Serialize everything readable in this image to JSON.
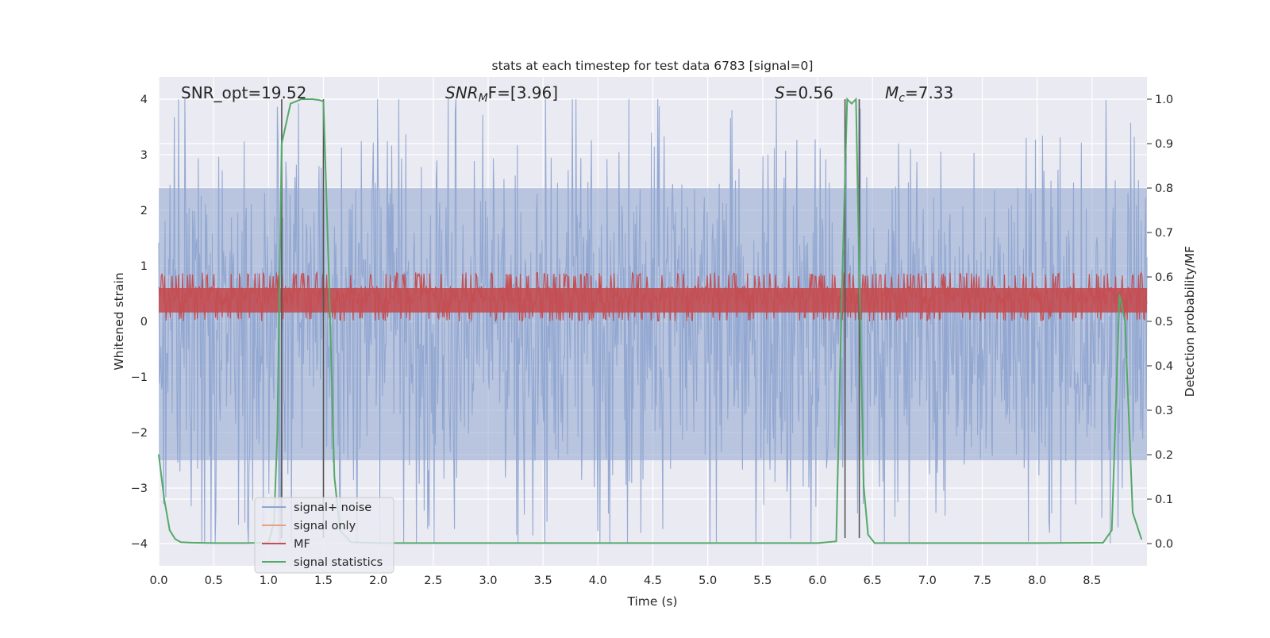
{
  "chart_data": {
    "type": "line",
    "title": "stats at each timestep for test data 6783 [signal=0]",
    "xlabel": "Time (s)",
    "ylabel_left": "Whitened strain",
    "ylabel_right": "Detection probability/MF",
    "xlim": [
      0.0,
      9.0
    ],
    "ylim_left": [
      -4.4,
      4.4
    ],
    "ylim_right": [
      -0.05,
      1.05
    ],
    "x_ticks": [
      "0.0",
      "0.5",
      "1.0",
      "1.5",
      "2.0",
      "2.5",
      "3.0",
      "3.5",
      "4.0",
      "4.5",
      "5.0",
      "5.5",
      "6.0",
      "6.5",
      "7.0",
      "7.5",
      "8.0",
      "8.5"
    ],
    "x_tick_values": [
      0.0,
      0.5,
      1.0,
      1.5,
      2.0,
      2.5,
      3.0,
      3.5,
      4.0,
      4.5,
      5.0,
      5.5,
      6.0,
      6.5,
      7.0,
      7.5,
      8.0,
      8.5
    ],
    "y_ticks_left": [
      "4",
      "3",
      "2",
      "1",
      "0",
      "−1",
      "−2",
      "−3",
      "−4"
    ],
    "y_tick_values_left": [
      4,
      3,
      2,
      1,
      0,
      -1,
      -2,
      -3,
      -4
    ],
    "y_ticks_right": [
      "1.0",
      "0.9",
      "0.8",
      "0.7",
      "0.6",
      "0.5",
      "0.4",
      "0.3",
      "0.2",
      "0.1",
      "0.0"
    ],
    "y_tick_values_right": [
      1.0,
      0.9,
      0.8,
      0.7,
      0.6,
      0.5,
      0.4,
      0.3,
      0.2,
      0.1,
      0.0
    ],
    "grid": true,
    "annotations": {
      "snr_opt": "SNR_opt=19.52",
      "snr_mf_main": "SNR",
      "snr_mf_sub": "M",
      "snr_mf_rest": "F=[3.96]",
      "s_italic": "S",
      "s_rest": "=0.56",
      "mc_main": "M",
      "mc_sub": "c",
      "mc_rest": "=7.33"
    },
    "vertical_markers": [
      1.12,
      1.5,
      6.25,
      6.38
    ],
    "series": [
      {
        "name": "signal+ noise",
        "color": "#8fa5d0",
        "amplitude_left": [
          -4.0,
          4.0
        ],
        "noise_band_left": [
          -2.5,
          2.4
        ]
      },
      {
        "name": "signal only",
        "color": "#e8a07f",
        "values": []
      },
      {
        "name": "MF",
        "color": "#c44e52",
        "band_right": [
          0.5,
          0.6
        ]
      },
      {
        "name": "signal statistics",
        "color": "#55a868",
        "x": [
          0.0,
          0.05,
          0.1,
          0.15,
          0.2,
          0.3,
          0.5,
          0.8,
          1.0,
          1.05,
          1.08,
          1.12,
          1.2,
          1.3,
          1.4,
          1.46,
          1.5,
          1.55,
          1.6,
          1.65,
          1.75,
          2.0,
          3.0,
          4.0,
          5.0,
          6.0,
          6.17,
          6.22,
          6.27,
          6.31,
          6.35,
          6.38,
          6.42,
          6.46,
          6.52,
          7.0,
          8.0,
          8.6,
          8.68,
          8.75,
          8.8,
          8.87,
          8.95
        ],
        "values": [
          0.2,
          0.1,
          0.03,
          0.01,
          0.003,
          0.002,
          0.001,
          0.001,
          0.002,
          0.05,
          0.25,
          0.9,
          0.99,
          1.0,
          1.0,
          0.998,
          0.995,
          0.6,
          0.15,
          0.03,
          0.003,
          0.001,
          0.001,
          0.001,
          0.001,
          0.001,
          0.005,
          0.55,
          1.0,
          0.99,
          1.0,
          0.6,
          0.13,
          0.02,
          0.001,
          0.001,
          0.001,
          0.002,
          0.03,
          0.56,
          0.5,
          0.07,
          0.01
        ]
      }
    ],
    "legend": {
      "position": "lower-left",
      "entries": [
        "signal+ noise",
        "signal only",
        "MF",
        "signal statistics"
      ]
    }
  }
}
